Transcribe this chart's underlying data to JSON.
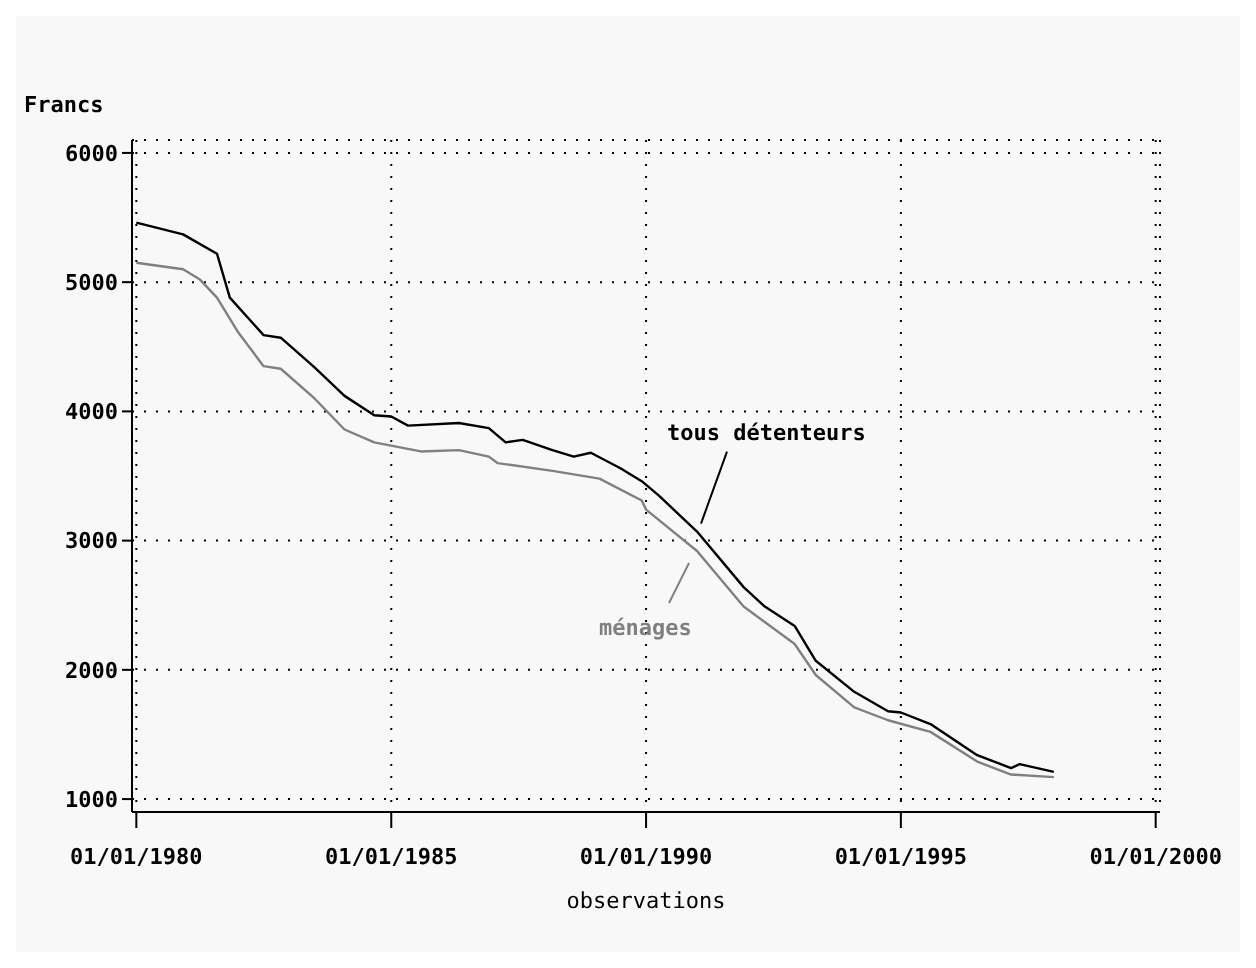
{
  "chart_data": {
    "type": "line",
    "ylabel": "Francs",
    "xlabel": "observations",
    "xlim": [
      "1979-12-01",
      "2000-02-01"
    ],
    "xticks": [
      {
        "value": "1980-01-01",
        "label": "01/01/1980"
      },
      {
        "value": "1985-01-01",
        "label": "01/01/1985"
      },
      {
        "value": "1990-01-01",
        "label": "01/01/1990"
      },
      {
        "value": "1995-01-01",
        "label": "01/01/1995"
      },
      {
        "value": "2000-01-01",
        "label": "01/01/2000"
      }
    ],
    "ylim": [
      900,
      6100
    ],
    "yticks": [
      1000,
      2000,
      3000,
      4000,
      5000,
      6000
    ],
    "grid": true,
    "marker": "none",
    "line_style": "solid",
    "series": [
      {
        "name": "tous détenteurs",
        "color": "#000000",
        "x": [
          "1980-01",
          "1980-12",
          "1981-08",
          "1981-11",
          "1982-07",
          "1982-11",
          "1983-07",
          "1984-02",
          "1984-09",
          "1985-01",
          "1985-05",
          "1986-05",
          "1986-12",
          "1987-04",
          "1987-08",
          "1988-03",
          "1988-08",
          "1988-12",
          "1989-07",
          "1989-12",
          "1990-04",
          "1991-01",
          "1991-12",
          "1992-05",
          "1992-12",
          "1993-05",
          "1994-02",
          "1994-10",
          "1995-01",
          "1995-08",
          "1996-07",
          "1997-03",
          "1997-05",
          "1998-01"
        ],
        "values": [
          5460,
          5370,
          5220,
          4880,
          4590,
          4570,
          4340,
          4120,
          3970,
          3960,
          3890,
          3910,
          3870,
          3760,
          3780,
          3700,
          3650,
          3680,
          3560,
          3460,
          3350,
          3070,
          2640,
          2490,
          2340,
          2070,
          1830,
          1680,
          1670,
          1580,
          1340,
          1240,
          1270,
          1210
        ]
      },
      {
        "name": "ménages",
        "color": "#808080",
        "x": [
          "1980-01",
          "1980-12",
          "1981-04",
          "1981-08",
          "1982-01",
          "1982-07",
          "1982-11",
          "1983-07",
          "1984-02",
          "1984-09",
          "1985-08",
          "1986-05",
          "1986-12",
          "1987-02",
          "1988-03",
          "1989-02",
          "1989-12",
          "1990-01",
          "1991-01",
          "1991-12",
          "1992-12",
          "1993-05",
          "1994-02",
          "1994-10",
          "1995-08",
          "1996-07",
          "1997-03",
          "1998-01"
        ],
        "values": [
          5150,
          5100,
          5020,
          4880,
          4610,
          4350,
          4330,
          4100,
          3860,
          3760,
          3690,
          3700,
          3650,
          3600,
          3540,
          3480,
          3310,
          3240,
          2920,
          2490,
          2200,
          1960,
          1710,
          1610,
          1520,
          1290,
          1190,
          1170
        ]
      }
    ]
  }
}
